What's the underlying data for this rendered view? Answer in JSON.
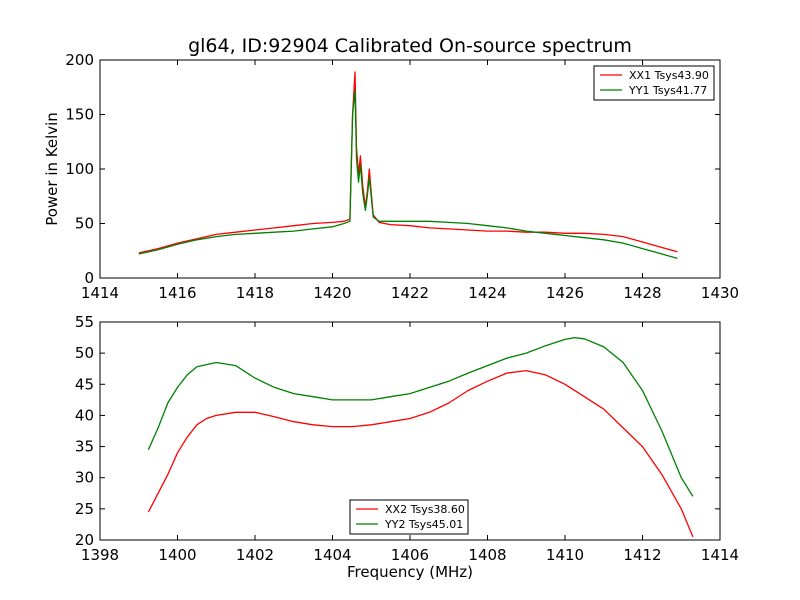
{
  "figure": {
    "title": "gl64, ID:92904 Calibrated On-source spectrum",
    "xlabel": "Frequency (MHz)",
    "ylabel": "Power in Kelvin"
  },
  "chart_data": [
    {
      "type": "line",
      "title": "gl64, ID:92904 Calibrated On-source spectrum",
      "xlabel": "",
      "ylabel": "Power in Kelvin",
      "xlim": [
        1414,
        1430
      ],
      "ylim": [
        0,
        200
      ],
      "xticks": [
        1414,
        1416,
        1418,
        1420,
        1422,
        1424,
        1426,
        1428,
        1430
      ],
      "yticks": [
        0,
        50,
        100,
        150,
        200
      ],
      "legend_position": "top-right",
      "series": [
        {
          "name": "XX1 Tsys43.90",
          "color": "#ff0000",
          "points": [
            [
              1415.0,
              23
            ],
            [
              1415.5,
              27
            ],
            [
              1416.0,
              32
            ],
            [
              1416.5,
              36
            ],
            [
              1417.0,
              40
            ],
            [
              1417.5,
              42
            ],
            [
              1418.0,
              44
            ],
            [
              1418.5,
              46
            ],
            [
              1419.0,
              48
            ],
            [
              1419.5,
              50
            ],
            [
              1420.0,
              51
            ],
            [
              1420.3,
              52
            ],
            [
              1420.45,
              54
            ],
            [
              1420.52,
              150
            ],
            [
              1420.58,
              189
            ],
            [
              1420.62,
              120
            ],
            [
              1420.67,
              95
            ],
            [
              1420.72,
              112
            ],
            [
              1420.78,
              85
            ],
            [
              1420.85,
              65
            ],
            [
              1420.9,
              80
            ],
            [
              1420.95,
              100
            ],
            [
              1421.0,
              78
            ],
            [
              1421.05,
              58
            ],
            [
              1421.2,
              51
            ],
            [
              1421.5,
              49
            ],
            [
              1422.0,
              48
            ],
            [
              1422.5,
              46
            ],
            [
              1423.0,
              45
            ],
            [
              1423.5,
              44
            ],
            [
              1424.0,
              43
            ],
            [
              1424.5,
              43
            ],
            [
              1425.0,
              42
            ],
            [
              1425.5,
              42
            ],
            [
              1426.0,
              41
            ],
            [
              1426.5,
              41
            ],
            [
              1427.0,
              40
            ],
            [
              1427.5,
              38
            ],
            [
              1428.0,
              33
            ],
            [
              1428.5,
              28
            ],
            [
              1428.9,
              24
            ]
          ]
        },
        {
          "name": "YY1 Tsys41.77",
          "color": "#008000",
          "points": [
            [
              1415.0,
              22
            ],
            [
              1415.5,
              26
            ],
            [
              1416.0,
              31
            ],
            [
              1416.5,
              35
            ],
            [
              1417.0,
              38
            ],
            [
              1417.5,
              40
            ],
            [
              1418.0,
              41
            ],
            [
              1418.5,
              42
            ],
            [
              1419.0,
              43
            ],
            [
              1419.5,
              45
            ],
            [
              1420.0,
              47
            ],
            [
              1420.3,
              50
            ],
            [
              1420.45,
              52
            ],
            [
              1420.52,
              150
            ],
            [
              1420.58,
              172
            ],
            [
              1420.62,
              110
            ],
            [
              1420.67,
              88
            ],
            [
              1420.72,
              104
            ],
            [
              1420.78,
              78
            ],
            [
              1420.85,
              62
            ],
            [
              1420.9,
              76
            ],
            [
              1420.95,
              92
            ],
            [
              1421.0,
              74
            ],
            [
              1421.05,
              56
            ],
            [
              1421.2,
              52
            ],
            [
              1421.5,
              52
            ],
            [
              1422.0,
              52
            ],
            [
              1422.5,
              52
            ],
            [
              1423.0,
              51
            ],
            [
              1423.5,
              50
            ],
            [
              1424.0,
              48
            ],
            [
              1424.5,
              46
            ],
            [
              1425.0,
              43
            ],
            [
              1425.5,
              41
            ],
            [
              1426.0,
              39
            ],
            [
              1426.5,
              37
            ],
            [
              1427.0,
              35
            ],
            [
              1427.5,
              32
            ],
            [
              1428.0,
              27
            ],
            [
              1428.5,
              22
            ],
            [
              1428.9,
              18
            ]
          ]
        }
      ]
    },
    {
      "type": "line",
      "title": "",
      "xlabel": "Frequency (MHz)",
      "ylabel": "",
      "xlim": [
        1398,
        1414
      ],
      "ylim": [
        20,
        55
      ],
      "xticks": [
        1398,
        1400,
        1402,
        1404,
        1406,
        1408,
        1410,
        1412,
        1414
      ],
      "yticks": [
        20,
        25,
        30,
        35,
        40,
        45,
        50,
        55
      ],
      "legend_position": "bottom-center",
      "series": [
        {
          "name": "XX2 Tsys38.60",
          "color": "#ff0000",
          "points": [
            [
              1399.25,
              24.5
            ],
            [
              1399.5,
              27.5
            ],
            [
              1399.75,
              30.5
            ],
            [
              1400.0,
              34.0
            ],
            [
              1400.25,
              36.5
            ],
            [
              1400.5,
              38.5
            ],
            [
              1400.75,
              39.5
            ],
            [
              1401.0,
              40.0
            ],
            [
              1401.5,
              40.5
            ],
            [
              1402.0,
              40.5
            ],
            [
              1402.5,
              39.8
            ],
            [
              1403.0,
              39.0
            ],
            [
              1403.5,
              38.5
            ],
            [
              1404.0,
              38.2
            ],
            [
              1404.5,
              38.2
            ],
            [
              1405.0,
              38.5
            ],
            [
              1405.5,
              39.0
            ],
            [
              1406.0,
              39.5
            ],
            [
              1406.5,
              40.5
            ],
            [
              1407.0,
              42.0
            ],
            [
              1407.5,
              44.0
            ],
            [
              1408.0,
              45.5
            ],
            [
              1408.5,
              46.8
            ],
            [
              1409.0,
              47.2
            ],
            [
              1409.5,
              46.5
            ],
            [
              1410.0,
              45.0
            ],
            [
              1410.5,
              43.0
            ],
            [
              1411.0,
              41.0
            ],
            [
              1411.5,
              38.0
            ],
            [
              1412.0,
              35.0
            ],
            [
              1412.5,
              30.5
            ],
            [
              1413.0,
              25.0
            ],
            [
              1413.3,
              20.5
            ]
          ]
        },
        {
          "name": "YY2 Tsys45.01",
          "color": "#008000",
          "points": [
            [
              1399.25,
              34.5
            ],
            [
              1399.5,
              38.0
            ],
            [
              1399.75,
              42.0
            ],
            [
              1400.0,
              44.5
            ],
            [
              1400.25,
              46.5
            ],
            [
              1400.5,
              47.8
            ],
            [
              1401.0,
              48.5
            ],
            [
              1401.5,
              48.0
            ],
            [
              1402.0,
              46.0
            ],
            [
              1402.5,
              44.5
            ],
            [
              1403.0,
              43.5
            ],
            [
              1403.5,
              43.0
            ],
            [
              1404.0,
              42.5
            ],
            [
              1404.5,
              42.5
            ],
            [
              1405.0,
              42.5
            ],
            [
              1405.5,
              43.0
            ],
            [
              1406.0,
              43.5
            ],
            [
              1406.5,
              44.5
            ],
            [
              1407.0,
              45.5
            ],
            [
              1407.5,
              46.8
            ],
            [
              1408.0,
              48.0
            ],
            [
              1408.5,
              49.2
            ],
            [
              1409.0,
              50.0
            ],
            [
              1409.5,
              51.2
            ],
            [
              1410.0,
              52.2
            ],
            [
              1410.25,
              52.5
            ],
            [
              1410.5,
              52.3
            ],
            [
              1411.0,
              51.0
            ],
            [
              1411.5,
              48.5
            ],
            [
              1412.0,
              44.0
            ],
            [
              1412.5,
              37.5
            ],
            [
              1413.0,
              30.0
            ],
            [
              1413.3,
              27.0
            ]
          ]
        }
      ]
    }
  ]
}
